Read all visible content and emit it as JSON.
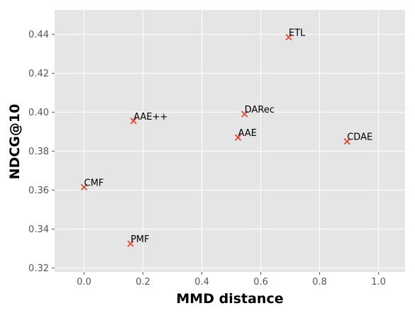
{
  "chart_data": {
    "type": "scatter",
    "title": "",
    "xlabel": "MMD distance",
    "ylabel": "NDCG@10",
    "xlim": [
      -0.1,
      1.09
    ],
    "ylim": [
      0.318,
      0.4525
    ],
    "x_ticks": [
      0.0,
      0.2,
      0.4,
      0.6,
      0.8,
      1.0
    ],
    "x_tick_labels": [
      "0.0",
      "0.2",
      "0.4",
      "0.6",
      "0.8",
      "1.0"
    ],
    "y_ticks": [
      0.32,
      0.34,
      0.36,
      0.38,
      0.4,
      0.42,
      0.44
    ],
    "y_tick_labels": [
      "0.32",
      "0.34",
      "0.36",
      "0.38",
      "0.40",
      "0.42",
      "0.44"
    ],
    "grid": true,
    "marker": "x",
    "marker_color": "#E24A33",
    "background_color": "#E5E5E5",
    "points": [
      {
        "label": "ETL",
        "x": 0.695,
        "y": 0.4385
      },
      {
        "label": "DARec",
        "x": 0.545,
        "y": 0.399
      },
      {
        "label": "AAE++",
        "x": 0.168,
        "y": 0.3955
      },
      {
        "label": "AAE",
        "x": 0.523,
        "y": 0.387
      },
      {
        "label": "CDAE",
        "x": 0.893,
        "y": 0.385
      },
      {
        "label": "CMF",
        "x": 0.0,
        "y": 0.3615
      },
      {
        "label": "PMF",
        "x": 0.158,
        "y": 0.3325
      }
    ]
  }
}
